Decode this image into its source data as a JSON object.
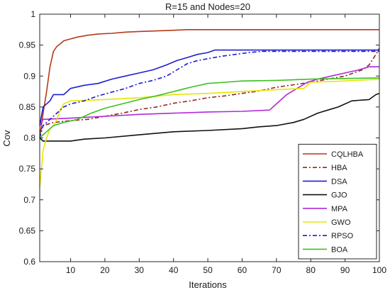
{
  "chart_data": {
    "type": "line",
    "title": "R=15 and Nodes=20",
    "xlabel": "Iterations",
    "ylabel": "Cov",
    "xlim": [
      1,
      100
    ],
    "ylim": [
      0.6,
      1.0
    ],
    "xticks": [
      "10",
      "20",
      "30",
      "40",
      "50",
      "60",
      "70",
      "80",
      "90",
      "100"
    ],
    "yticks": [
      "0.6",
      "0.65",
      "0.7",
      "0.75",
      "0.8",
      "0.85",
      "0.9",
      "0.95",
      "1"
    ],
    "grid": false,
    "legend_position": "bottom-right",
    "series": [
      {
        "name": "CQLHBA",
        "color": "#b5391d",
        "dash": "solid",
        "points": [
          [
            1,
            0.8
          ],
          [
            2,
            0.84
          ],
          [
            3,
            0.875
          ],
          [
            4,
            0.915
          ],
          [
            5,
            0.94
          ],
          [
            6,
            0.948
          ],
          [
            7,
            0.952
          ],
          [
            8,
            0.957
          ],
          [
            10,
            0.96
          ],
          [
            12,
            0.963
          ],
          [
            15,
            0.966
          ],
          [
            18,
            0.968
          ],
          [
            22,
            0.969
          ],
          [
            26,
            0.971
          ],
          [
            30,
            0.972
          ],
          [
            35,
            0.973
          ],
          [
            40,
            0.974
          ],
          [
            44,
            0.975
          ],
          [
            50,
            0.975
          ],
          [
            60,
            0.975
          ],
          [
            70,
            0.975
          ],
          [
            80,
            0.975
          ],
          [
            90,
            0.975
          ],
          [
            100,
            0.975
          ]
        ]
      },
      {
        "name": "HBA",
        "color": "#8b2a1e",
        "dash": "dashdot",
        "points": [
          [
            1,
            0.81
          ],
          [
            2,
            0.82
          ],
          [
            5,
            0.825
          ],
          [
            10,
            0.828
          ],
          [
            15,
            0.83
          ],
          [
            20,
            0.835
          ],
          [
            25,
            0.84
          ],
          [
            30,
            0.846
          ],
          [
            35,
            0.85
          ],
          [
            40,
            0.856
          ],
          [
            45,
            0.86
          ],
          [
            50,
            0.865
          ],
          [
            55,
            0.868
          ],
          [
            60,
            0.872
          ],
          [
            65,
            0.876
          ],
          [
            70,
            0.882
          ],
          [
            75,
            0.886
          ],
          [
            80,
            0.89
          ],
          [
            85,
            0.895
          ],
          [
            90,
            0.9
          ],
          [
            95,
            0.91
          ],
          [
            97,
            0.918
          ],
          [
            99,
            0.935
          ],
          [
            100,
            0.945
          ]
        ]
      },
      {
        "name": "DSA",
        "color": "#1f1fd1",
        "dash": "solid",
        "points": [
          [
            1,
            0.82
          ],
          [
            2,
            0.85
          ],
          [
            4,
            0.86
          ],
          [
            5,
            0.87
          ],
          [
            8,
            0.87
          ],
          [
            10,
            0.88
          ],
          [
            14,
            0.885
          ],
          [
            18,
            0.888
          ],
          [
            22,
            0.895
          ],
          [
            26,
            0.9
          ],
          [
            30,
            0.905
          ],
          [
            34,
            0.91
          ],
          [
            38,
            0.918
          ],
          [
            41,
            0.925
          ],
          [
            44,
            0.93
          ],
          [
            47,
            0.935
          ],
          [
            50,
            0.938
          ],
          [
            52,
            0.942
          ],
          [
            60,
            0.942
          ],
          [
            70,
            0.942
          ],
          [
            80,
            0.942
          ],
          [
            90,
            0.942
          ],
          [
            100,
            0.942
          ]
        ]
      },
      {
        "name": "GJO",
        "color": "#111111",
        "dash": "solid",
        "points": [
          [
            1,
            0.8
          ],
          [
            2,
            0.795
          ],
          [
            10,
            0.795
          ],
          [
            14,
            0.798
          ],
          [
            20,
            0.8
          ],
          [
            30,
            0.805
          ],
          [
            40,
            0.81
          ],
          [
            50,
            0.812
          ],
          [
            60,
            0.815
          ],
          [
            65,
            0.818
          ],
          [
            70,
            0.82
          ],
          [
            75,
            0.825
          ],
          [
            78,
            0.83
          ],
          [
            82,
            0.84
          ],
          [
            85,
            0.845
          ],
          [
            88,
            0.85
          ],
          [
            92,
            0.86
          ],
          [
            97,
            0.862
          ],
          [
            99,
            0.87
          ],
          [
            100,
            0.872
          ]
        ]
      },
      {
        "name": "MPA",
        "color": "#b12ad6",
        "dash": "solid",
        "points": [
          [
            1,
            0.82
          ],
          [
            2,
            0.83
          ],
          [
            10,
            0.832
          ],
          [
            20,
            0.835
          ],
          [
            30,
            0.838
          ],
          [
            40,
            0.84
          ],
          [
            50,
            0.842
          ],
          [
            60,
            0.843
          ],
          [
            68,
            0.845
          ],
          [
            70,
            0.855
          ],
          [
            73,
            0.87
          ],
          [
            76,
            0.88
          ],
          [
            79,
            0.89
          ],
          [
            82,
            0.895
          ],
          [
            86,
            0.9
          ],
          [
            90,
            0.905
          ],
          [
            94,
            0.91
          ],
          [
            97,
            0.915
          ],
          [
            100,
            0.915
          ]
        ]
      },
      {
        "name": "GWO",
        "color": "#e6e600",
        "dash": "solid",
        "points": [
          [
            1,
            0.72
          ],
          [
            2,
            0.78
          ],
          [
            3,
            0.8
          ],
          [
            4,
            0.815
          ],
          [
            5,
            0.82
          ],
          [
            6,
            0.83
          ],
          [
            7,
            0.845
          ],
          [
            8,
            0.855
          ],
          [
            10,
            0.86
          ],
          [
            20,
            0.862
          ],
          [
            30,
            0.865
          ],
          [
            40,
            0.87
          ],
          [
            50,
            0.872
          ],
          [
            60,
            0.875
          ],
          [
            70,
            0.878
          ],
          [
            78,
            0.88
          ],
          [
            80,
            0.89
          ],
          [
            90,
            0.892
          ],
          [
            100,
            0.895
          ]
        ]
      },
      {
        "name": "RPSO",
        "color": "#1a1ad6",
        "dash": "dashdot",
        "points": [
          [
            1,
            0.8
          ],
          [
            2,
            0.82
          ],
          [
            4,
            0.83
          ],
          [
            6,
            0.84
          ],
          [
            8,
            0.85
          ],
          [
            10,
            0.855
          ],
          [
            14,
            0.86
          ],
          [
            18,
            0.868
          ],
          [
            22,
            0.874
          ],
          [
            26,
            0.88
          ],
          [
            30,
            0.888
          ],
          [
            34,
            0.893
          ],
          [
            38,
            0.9
          ],
          [
            41,
            0.91
          ],
          [
            44,
            0.92
          ],
          [
            47,
            0.925
          ],
          [
            50,
            0.928
          ],
          [
            54,
            0.932
          ],
          [
            58,
            0.935
          ],
          [
            62,
            0.938
          ],
          [
            66,
            0.94
          ],
          [
            70,
            0.94
          ],
          [
            80,
            0.94
          ],
          [
            90,
            0.94
          ],
          [
            100,
            0.94
          ]
        ]
      },
      {
        "name": "BOA",
        "color": "#3cc01f",
        "dash": "solid",
        "points": [
          [
            1,
            0.8
          ],
          [
            2,
            0.805
          ],
          [
            3,
            0.81
          ],
          [
            5,
            0.82
          ],
          [
            8,
            0.825
          ],
          [
            12,
            0.83
          ],
          [
            16,
            0.84
          ],
          [
            20,
            0.848
          ],
          [
            25,
            0.855
          ],
          [
            30,
            0.862
          ],
          [
            35,
            0.868
          ],
          [
            40,
            0.875
          ],
          [
            45,
            0.882
          ],
          [
            50,
            0.888
          ],
          [
            55,
            0.89
          ],
          [
            60,
            0.892
          ],
          [
            70,
            0.893
          ],
          [
            80,
            0.895
          ],
          [
            90,
            0.896
          ],
          [
            100,
            0.897
          ]
        ]
      }
    ]
  }
}
